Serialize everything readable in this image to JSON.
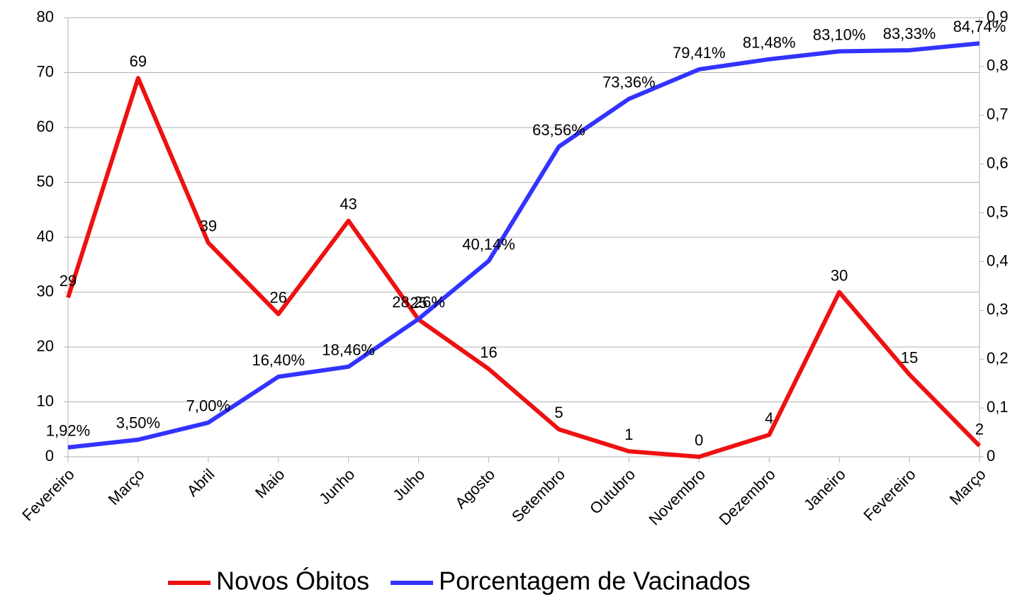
{
  "chart_data": {
    "type": "line",
    "categories": [
      "Fevereiro",
      "Março",
      "Abril",
      "Maio",
      "Junho",
      "Julho",
      "Agosto",
      "Setembro",
      "Outubro",
      "Novembro",
      "Dezembro",
      "Janeiro",
      "Fevereiro",
      "Março"
    ],
    "series": [
      {
        "name": "Novos Óbitos",
        "color": "#ee1111",
        "values": [
          29,
          69,
          39,
          26,
          43,
          25,
          16,
          5,
          1,
          0,
          4,
          30,
          15,
          2
        ]
      },
      {
        "name": "Porcentagem de Vacinados",
        "color": "#3333ff",
        "axis": "y2",
        "values": [
          0.0192,
          0.035,
          0.07,
          0.164,
          0.1846,
          0.2826,
          0.4014,
          0.6356,
          0.7336,
          0.7941,
          0.8148,
          0.831,
          0.8333,
          0.8474
        ],
        "value_labels": [
          "1,92%",
          "3,50%",
          "7,00%",
          "16,40%",
          "18,46%",
          "28,26%",
          "40,14%",
          "63,56%",
          "73,36%",
          "79,41%",
          "81,48%",
          "83,10%",
          "83,33%",
          "84,74%"
        ]
      }
    ],
    "ylim": [
      0,
      80
    ],
    "yticks": [
      0,
      10,
      20,
      30,
      40,
      50,
      60,
      70,
      80
    ],
    "y2lim": [
      0,
      0.9
    ],
    "y2ticks": [
      0,
      {
        "value": 0.1,
        "label": "0,1"
      },
      {
        "value": 0.2,
        "label": "0,2"
      },
      {
        "value": 0.3,
        "label": "0,3"
      },
      {
        "value": 0.4,
        "label": "0,4"
      },
      {
        "value": 0.5,
        "label": "0,5"
      },
      {
        "value": 0.6,
        "label": "0,6"
      },
      {
        "value": 0.7,
        "label": "0,7"
      },
      {
        "value": 0.8,
        "label": "0,8"
      },
      {
        "value": 0.9,
        "label": "0,9"
      }
    ],
    "grid": true,
    "legend": "bottom"
  }
}
